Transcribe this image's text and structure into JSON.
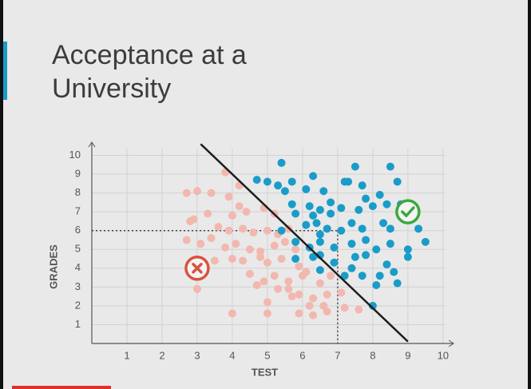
{
  "chart_data": {
    "type": "scatter",
    "title": "Acceptance at a University",
    "x_label": "TEST",
    "y_label": "GRADES",
    "xlim": [
      0,
      10.3
    ],
    "ylim": [
      0,
      10.7
    ],
    "xticks": [
      1,
      2,
      3,
      4,
      5,
      6,
      7,
      8,
      9,
      10
    ],
    "yticks": [
      1,
      2,
      3,
      4,
      5,
      6,
      7,
      8,
      9,
      10
    ],
    "grid": true,
    "series": [
      {
        "color": "#f2b8b0",
        "x": [
          3.8,
          4.2,
          2.7,
          3.0,
          3.4,
          3.9,
          4.2,
          3.3,
          2.9,
          2.8,
          4.0,
          4.4,
          4.9,
          5.2,
          3.6,
          3.9,
          4.3,
          4.6,
          5.0,
          5.3,
          5.6,
          2.7,
          3.1,
          3.4,
          3.8,
          4.1,
          4.5,
          4.8,
          5.2,
          5.5,
          5.8,
          3.5,
          4.0,
          4.3,
          4.8,
          5.0,
          5.4,
          5.9,
          6.1,
          4.5,
          4.9,
          5.2,
          5.6,
          6.0,
          6.5,
          6.8,
          3.0,
          4.7,
          5.3,
          5.6,
          5.9,
          6.3,
          6.7,
          7.1,
          5.0,
          5.7,
          6.6,
          7.2,
          7.6,
          4.0,
          5.0,
          5.9,
          6.3,
          6.7,
          6.2
        ],
        "values": [
          9.1,
          8.4,
          8.0,
          8.1,
          8.0,
          7.8,
          7.3,
          6.9,
          6.6,
          6.5,
          6.8,
          7.0,
          7.2,
          6.9,
          6.2,
          6.0,
          6.1,
          5.9,
          6.0,
          5.8,
          6.1,
          5.5,
          5.3,
          5.6,
          5.1,
          5.3,
          5.0,
          4.9,
          5.2,
          5.4,
          5.0,
          4.4,
          4.5,
          4.4,
          4.6,
          4.3,
          4.5,
          4.1,
          3.8,
          3.7,
          3.3,
          3.6,
          3.3,
          3.6,
          3.2,
          3.6,
          2.9,
          3.1,
          2.9,
          2.9,
          2.6,
          2.4,
          2.6,
          2.7,
          2.2,
          2.5,
          2.0,
          1.9,
          1.8,
          1.6,
          1.6,
          1.6,
          1.5,
          1.7,
          2.0
        ]
      },
      {
        "color": "#1a9cc9",
        "x": [
          5.4,
          4.7,
          5.0,
          5.3,
          5.7,
          6.3,
          6.1,
          5.5,
          6.6,
          6.8,
          7.2,
          7.5,
          7.3,
          7.7,
          8.5,
          8.7,
          8.2,
          7.8,
          5.7,
          6.2,
          5.8,
          6.5,
          6.3,
          6.4,
          6.8,
          7.1,
          7.6,
          8.0,
          8.4,
          8.8,
          9.1,
          6.1,
          6.5,
          6.7,
          7.1,
          7.4,
          7.7,
          8.3,
          8.5,
          9.3,
          9.5,
          5.4,
          5.8,
          6.2,
          6.5,
          6.9,
          7.4,
          7.8,
          8.1,
          8.5,
          9.0,
          5.8,
          6.3,
          6.5,
          6.9,
          7.5,
          7.8,
          8.4,
          9.0,
          6.5,
          7.4,
          7.7,
          8.2,
          8.6,
          8.1,
          8.7,
          8.0,
          7.2
        ],
        "values": [
          9.6,
          8.7,
          8.6,
          8.4,
          8.6,
          8.9,
          8.2,
          8.1,
          8.1,
          7.5,
          8.6,
          9.4,
          8.6,
          8.4,
          9.4,
          8.6,
          7.9,
          7.7,
          7.4,
          7.3,
          6.9,
          7.1,
          6.8,
          6.4,
          6.9,
          7.2,
          7.1,
          7.3,
          7.4,
          7.4,
          6.9,
          6.3,
          5.8,
          6.1,
          6.0,
          6.4,
          6.1,
          6.4,
          6.1,
          6.1,
          5.4,
          6.0,
          5.4,
          5.1,
          5.4,
          5.1,
          5.3,
          5.5,
          5.0,
          5.3,
          5.0,
          4.5,
          4.6,
          4.7,
          4.3,
          4.6,
          4.7,
          4.2,
          4.6,
          3.9,
          4.0,
          3.6,
          3.6,
          3.8,
          3.1,
          3.2,
          2.0,
          3.6
        ]
      }
    ],
    "boundary_line": {
      "x": [
        3.1,
        9.0
      ],
      "values": [
        10.6,
        0.1
      ]
    },
    "reference_point": {
      "x": 7,
      "y": 6
    },
    "rejected_marker": {
      "x": 3,
      "y": 4,
      "color": "#d9533f"
    },
    "accepted_marker": {
      "x": 9,
      "y": 7,
      "color": "#3aa83f"
    }
  }
}
